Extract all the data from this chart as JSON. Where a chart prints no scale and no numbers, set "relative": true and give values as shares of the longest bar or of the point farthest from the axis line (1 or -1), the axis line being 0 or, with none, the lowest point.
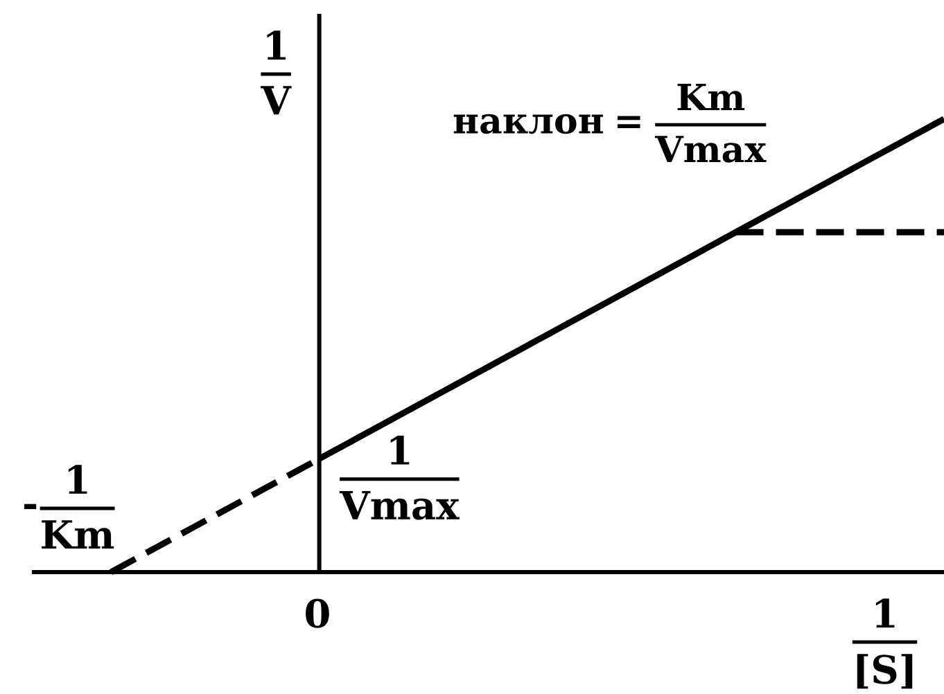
{
  "chart_data": {
    "type": "line",
    "relative": true,
    "xlabel": "\\frac{1}{[S]}",
    "ylabel": "\\frac{1}{V}",
    "categories": [
      null,
      null,
      null,
      null,
      null
    ],
    "annotations": [
      "\\mbox{наклон}=\\frac{Km}{Vmax}",
      "-\\frac{1}{Km}",
      "\\frac{1}{Vmax}",
      "0"
    ],
    "series": [
      {
        "values": [
          null,
          0.25,
          0.5,
          0.75,
          1
        ],
        "color": "#000000",
        "line_style": "solid"
      },
      {
        "values": [
          0,
          0.25,
          null,
          null,
          null
        ],
        "color": "#000000",
        "line_style": "dashed"
      },
      {
        "values": [
          null,
          null,
          null,
          0.75,
          0.75
        ],
        "color": "#000000",
        "line_style": "dashed"
      }
    ]
  }
}
